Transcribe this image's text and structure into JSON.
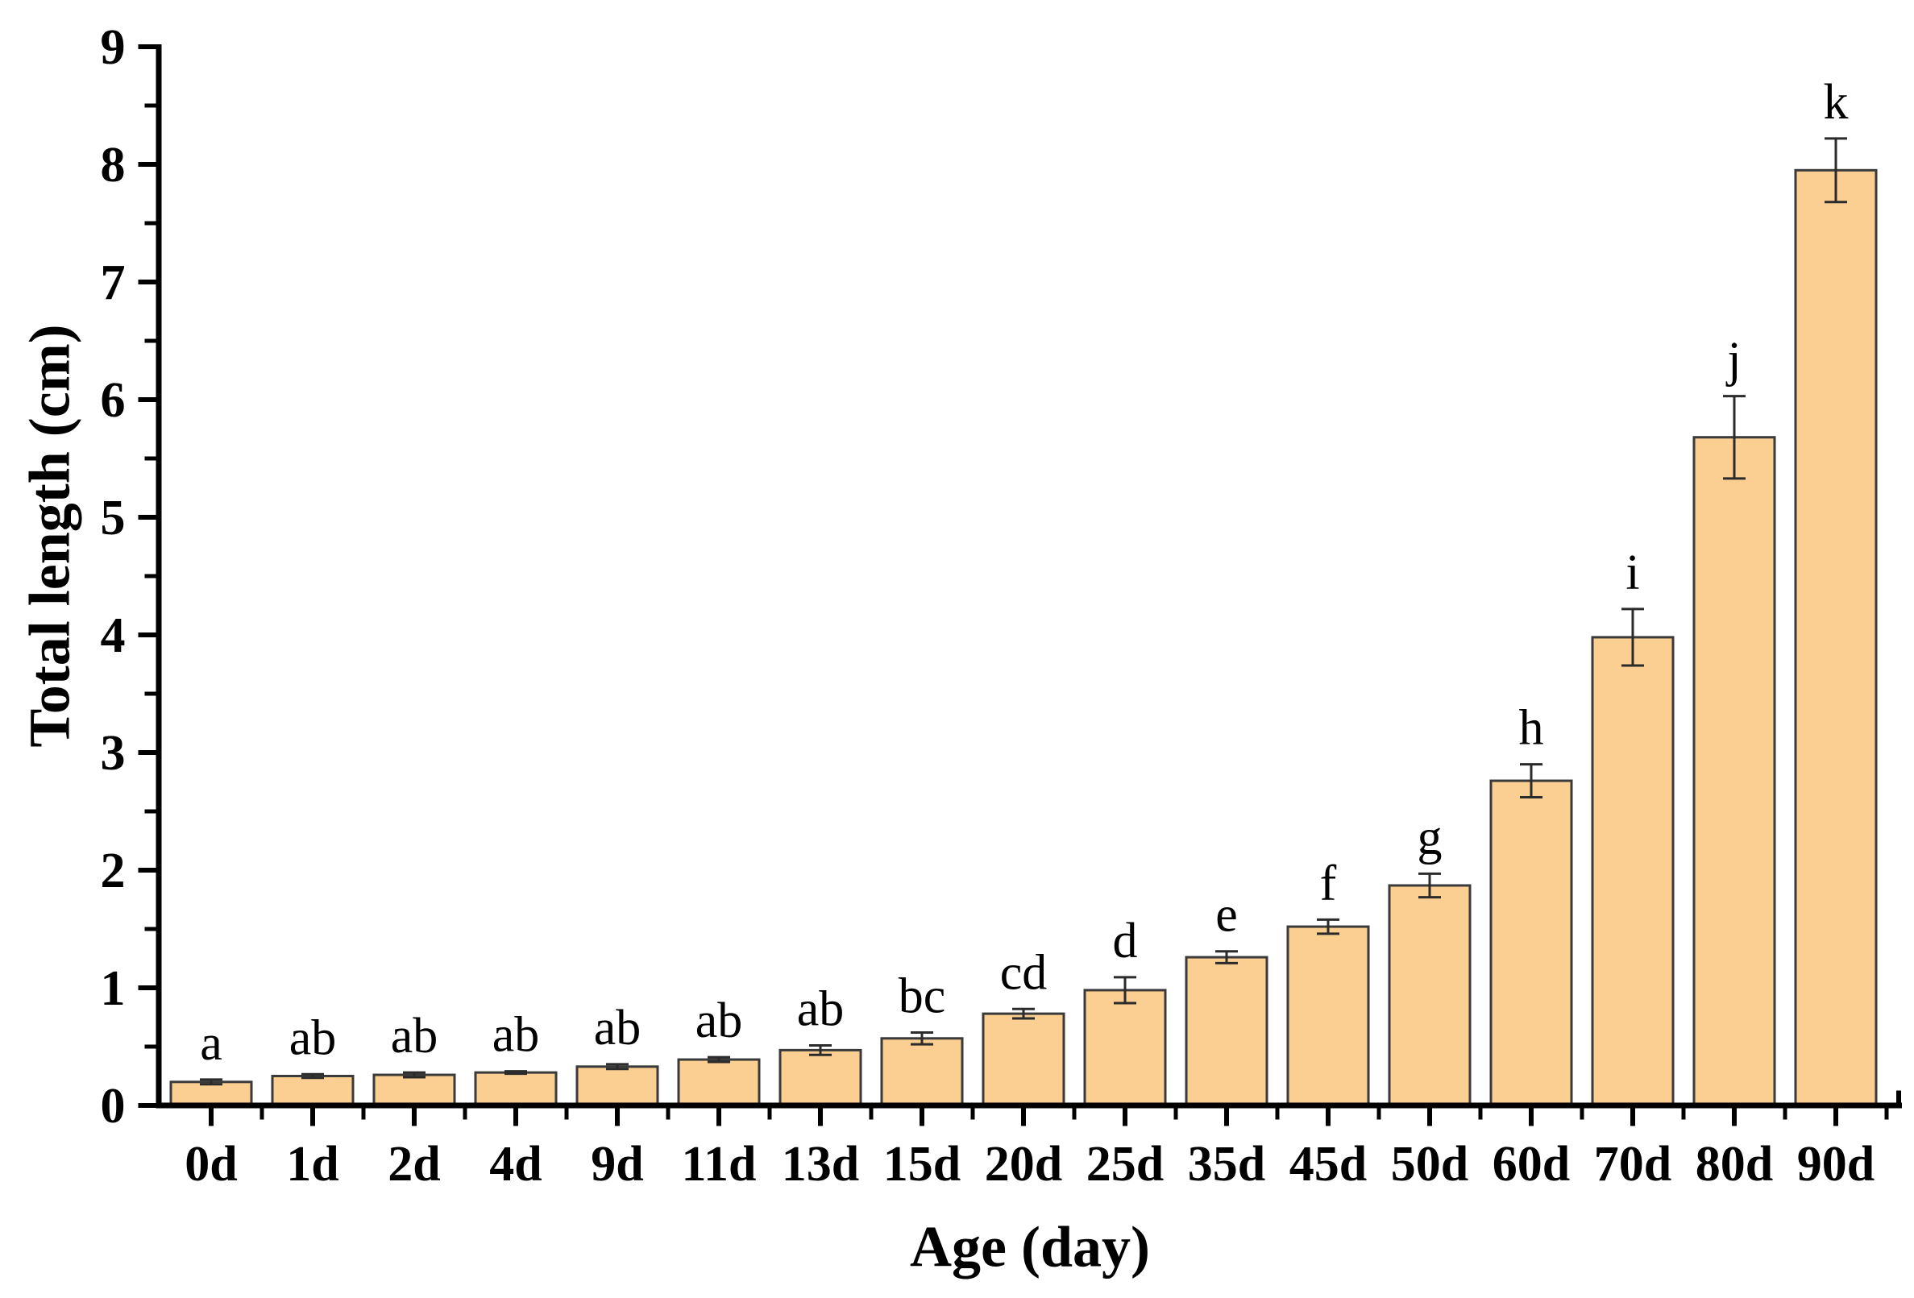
{
  "figure": {
    "background": "#ffffff"
  },
  "chart_data": {
    "type": "bar",
    "title": "",
    "xlabel": "Age (day)",
    "ylabel": "Total length (cm)",
    "categories": [
      "0d",
      "1d",
      "2d",
      "4d",
      "9d",
      "11d",
      "13d",
      "15d",
      "20d",
      "25d",
      "35d",
      "45d",
      "50d",
      "60d",
      "70d",
      "80d",
      "90d"
    ],
    "values": [
      0.2,
      0.25,
      0.26,
      0.28,
      0.33,
      0.39,
      0.47,
      0.57,
      0.78,
      0.98,
      1.26,
      1.52,
      1.87,
      2.76,
      3.98,
      5.68,
      7.95
    ],
    "errors": [
      0.02,
      0.015,
      0.02,
      0.01,
      0.02,
      0.02,
      0.04,
      0.05,
      0.04,
      0.11,
      0.05,
      0.06,
      0.1,
      0.14,
      0.24,
      0.35,
      0.27
    ],
    "sig_letters": [
      "a",
      "ab",
      "ab",
      "ab",
      "ab",
      "ab",
      "ab",
      "bc",
      "cd",
      "d",
      "e",
      "f",
      "g",
      "h",
      "i",
      "j",
      "k"
    ],
    "ylim": [
      0,
      9
    ],
    "y_major_step": 1,
    "y_minor_step": 0.5,
    "grid": "off",
    "legend": "none",
    "bar_fill": "#FBCE92",
    "bar_edge": "#3A3A3A",
    "error_color": "#2B2B2B",
    "axis_color": "#000000"
  }
}
